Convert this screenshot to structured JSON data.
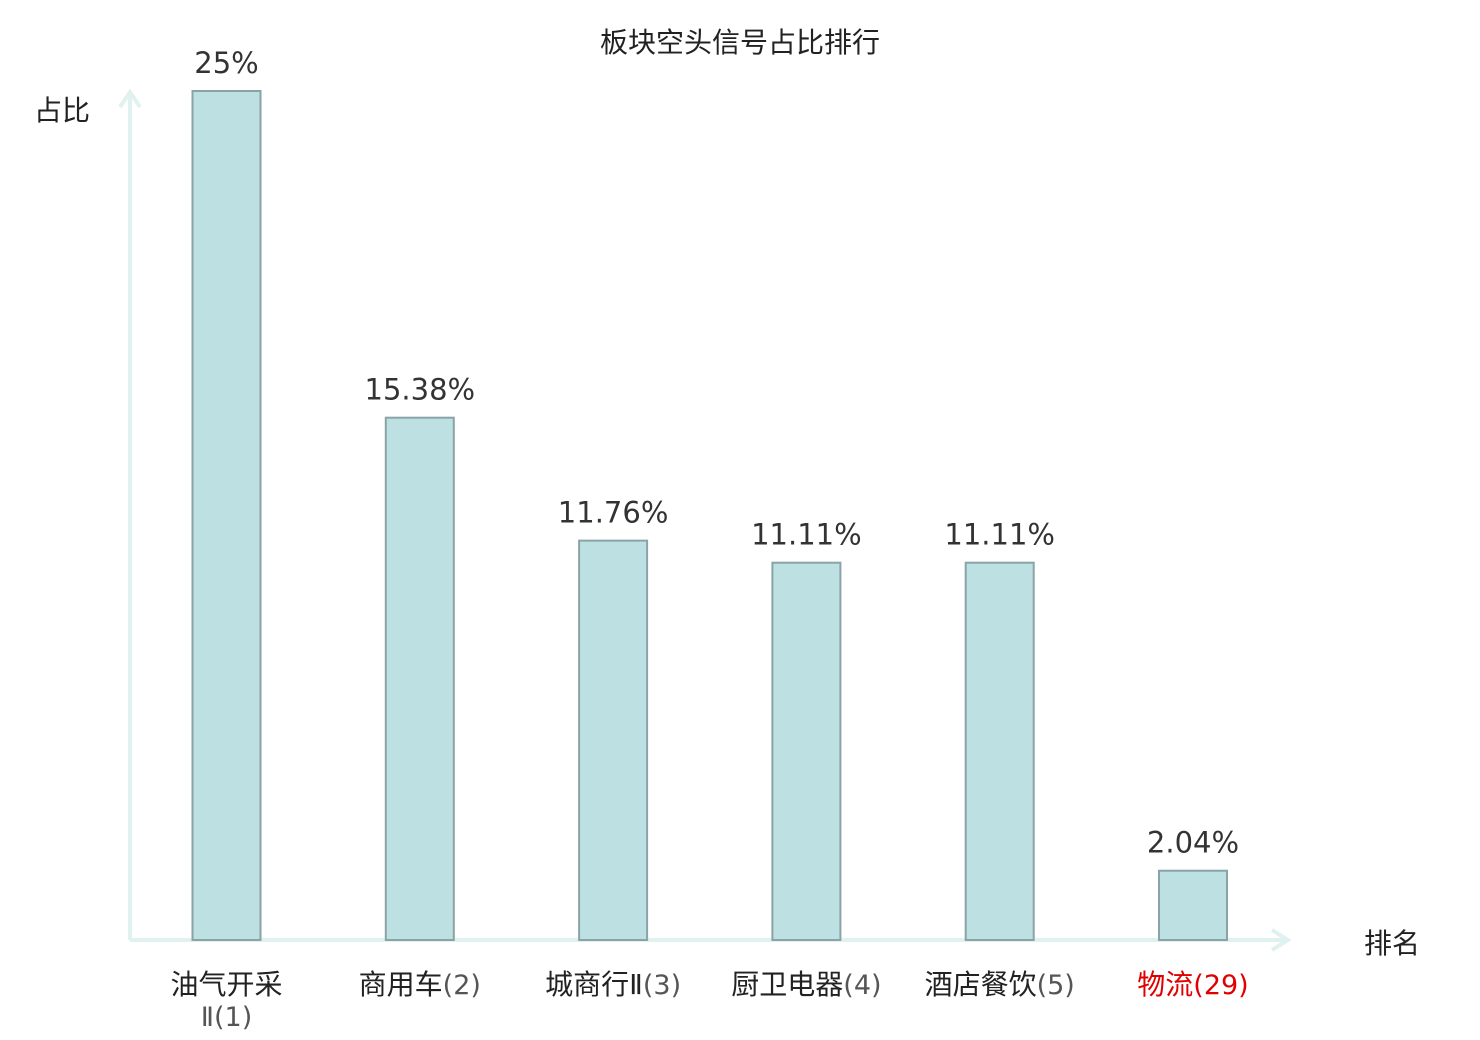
{
  "chart_data": {
    "type": "bar",
    "title": "板块空头信号占比排行",
    "ylabel": "占比",
    "xlabel": "排名",
    "ylim": [
      0,
      25
    ],
    "categories": [
      {
        "name": "油气开采Ⅱ",
        "rank": "(1)",
        "highlight": false
      },
      {
        "name": "商用车",
        "rank": "(2)",
        "highlight": false
      },
      {
        "name": "城商行Ⅱ",
        "rank": "(3)",
        "highlight": false
      },
      {
        "name": "厨卫电器",
        "rank": "(4)",
        "highlight": false
      },
      {
        "name": "酒店餐饮",
        "rank": "(5)",
        "highlight": false
      },
      {
        "name": "物流",
        "rank": "(29)",
        "highlight": true
      }
    ],
    "values": [
      25,
      15.38,
      11.76,
      11.11,
      11.11,
      2.04
    ],
    "value_labels": [
      "25%",
      "15.38%",
      "11.76%",
      "11.11%",
      "11.11%",
      "2.04%"
    ],
    "grid": false,
    "colors": {
      "bar_fill": "#bde0e3",
      "bar_stroke": "#8aa3a6",
      "axis": "#e0f2ef",
      "highlight": "#e00000",
      "text": "#333333",
      "rank_text": "#555555"
    }
  }
}
